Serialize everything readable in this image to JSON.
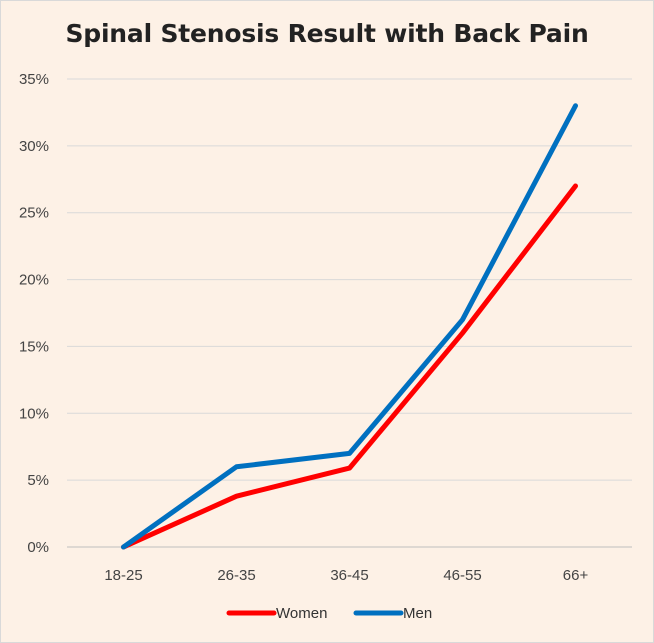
{
  "chart_data": {
    "type": "line",
    "title": "Spinal Stenosis Result with Back Pain",
    "categories": [
      "18-25",
      "26-35",
      "36-45",
      "46-55",
      "66+"
    ],
    "series": [
      {
        "name": "Women",
        "color": "#ff0000",
        "values": [
          0,
          3.8,
          5.9,
          16,
          27
        ]
      },
      {
        "name": "Men",
        "color": "#0070c0",
        "values": [
          0,
          6,
          7,
          17,
          33
        ]
      }
    ],
    "y_ticks": [
      0,
      5,
      10,
      15,
      20,
      25,
      30,
      35
    ],
    "y_tick_labels": [
      "0%",
      "5%",
      "10%",
      "15%",
      "20%",
      "25%",
      "30%",
      "35%"
    ],
    "ylim": [
      0,
      35
    ],
    "y_unit": "%",
    "grid": "horizontal",
    "legend_position": "bottom"
  }
}
